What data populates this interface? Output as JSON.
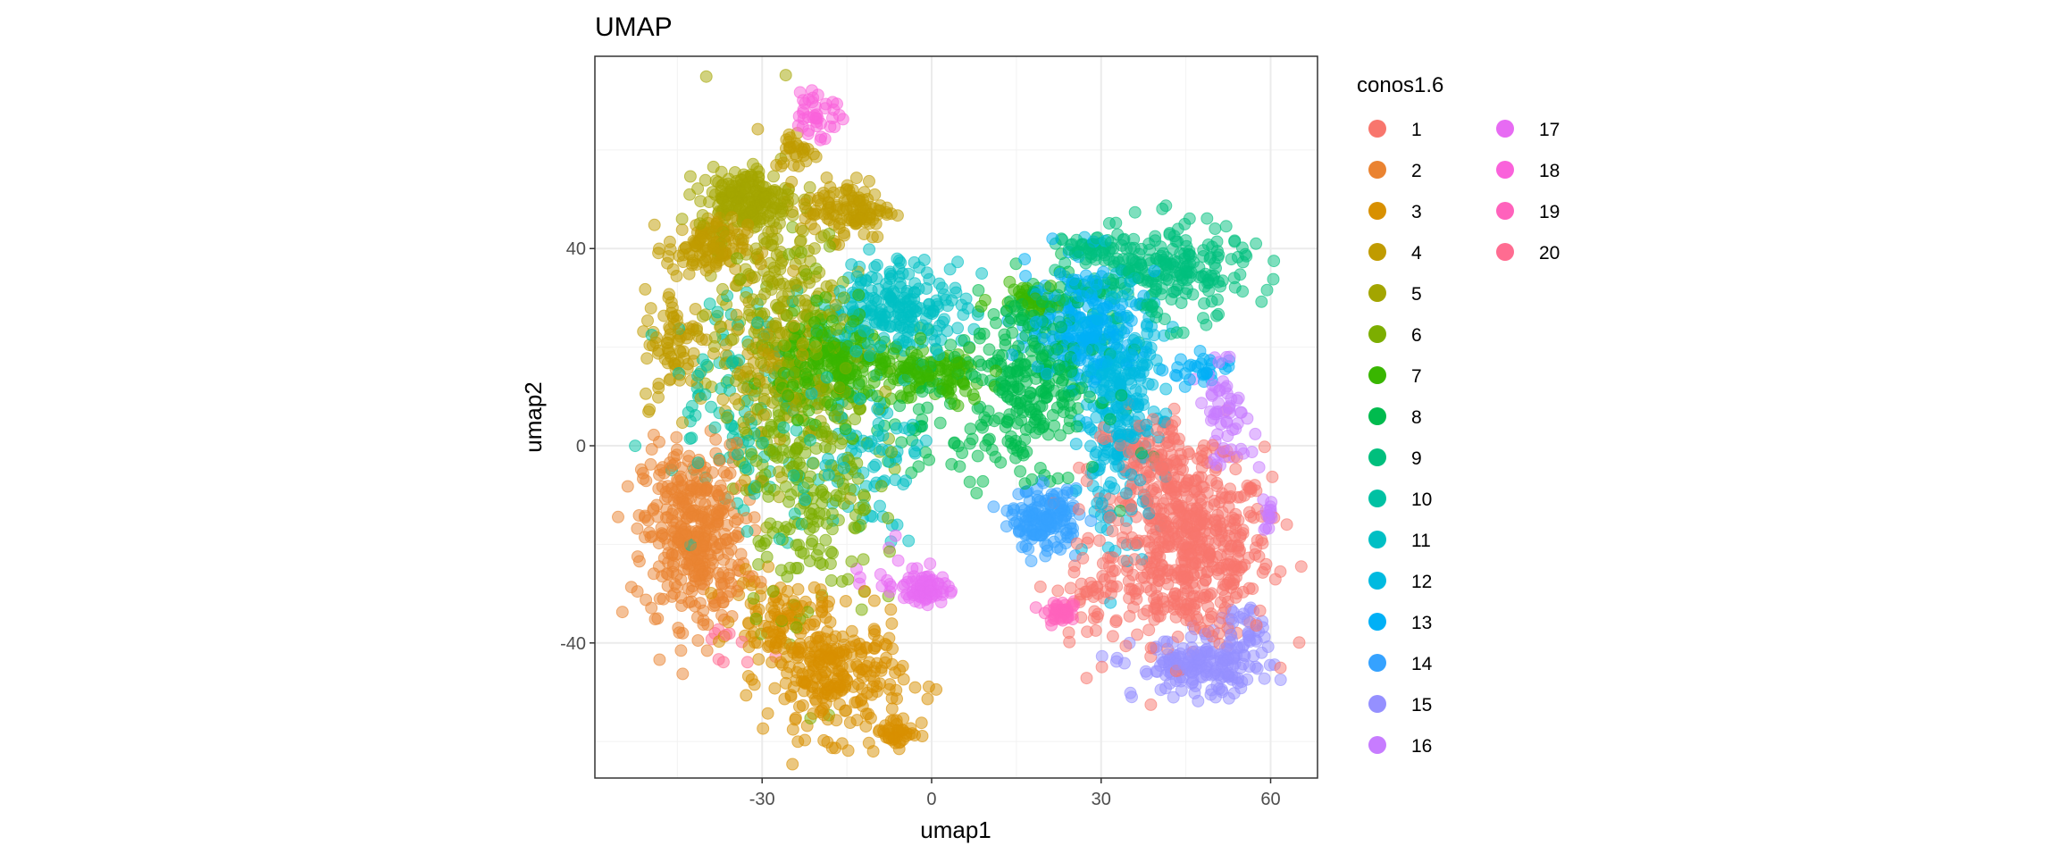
{
  "chart_data": {
    "type": "scatter",
    "title": "UMAP",
    "xlabel": "umap1",
    "ylabel": "umap2",
    "xlim": [
      -59.6,
      68.3
    ],
    "ylim": [
      -67.4,
      79
    ],
    "x_ticks": [
      -30,
      0,
      30,
      60
    ],
    "y_ticks": [
      -40,
      0,
      40
    ],
    "x_tick_labels": [
      "-30",
      "0",
      "30",
      "60"
    ],
    "y_tick_labels": [
      "-40",
      "0",
      "40"
    ],
    "grid": true,
    "legend": {
      "title": "conos1.6",
      "placement": "right",
      "entries": [
        "1",
        "2",
        "3",
        "4",
        "5",
        "6",
        "7",
        "8",
        "9",
        "10",
        "11",
        "12",
        "13",
        "14",
        "15",
        "16",
        "17",
        "18",
        "19",
        "20"
      ],
      "colors": [
        "#F8766D",
        "#EA8331",
        "#D89000",
        "#C09B00",
        "#A3A500",
        "#7CAE00",
        "#39B600",
        "#00BB4E",
        "#00BF7D",
        "#00C1A3",
        "#00BFC4",
        "#00BAE0",
        "#00B0F6",
        "#35A2FF",
        "#9590FF",
        "#C77CFF",
        "#E76BF3",
        "#FA62DB",
        "#FF62BC",
        "#FF6C91"
      ]
    },
    "clusters": [
      {
        "name": "1",
        "blobs": [
          [
            46,
            -22,
            7,
            9,
            500
          ],
          [
            40,
            -5,
            6,
            6,
            150
          ],
          [
            28,
            -30,
            3,
            6,
            40
          ]
        ]
      },
      {
        "name": "2",
        "blobs": [
          [
            -42,
            -18,
            4.5,
            9,
            400
          ]
        ]
      },
      {
        "name": "3",
        "blobs": [
          [
            -17,
            -47,
            6,
            6,
            250
          ],
          [
            -27,
            -35,
            4,
            4,
            100
          ],
          [
            -6,
            -58,
            2,
            1.5,
            40
          ]
        ]
      },
      {
        "name": "4",
        "blobs": [
          [
            -40,
            40,
            3.5,
            3,
            120
          ],
          [
            -15,
            48,
            4,
            3,
            120
          ],
          [
            -45,
            20,
            3,
            6,
            80
          ],
          [
            -24,
            60,
            2,
            2,
            30
          ],
          [
            -30,
            20,
            5,
            10,
            60
          ]
        ]
      },
      {
        "name": "5",
        "blobs": [
          [
            -33,
            50,
            4,
            3,
            180
          ],
          [
            -28,
            25,
            6,
            14,
            250
          ]
        ]
      },
      {
        "name": "6",
        "blobs": [
          [
            -22,
            0,
            6,
            18,
            300
          ]
        ]
      },
      {
        "name": "7",
        "blobs": [
          [
            -17,
            17,
            5,
            5,
            220
          ],
          [
            0,
            14,
            5,
            3,
            120
          ],
          [
            17,
            30,
            3,
            1.5,
            40
          ]
        ]
      },
      {
        "name": "8",
        "blobs": [
          [
            18,
            14,
            6,
            9,
            280
          ],
          [
            5,
            5,
            8,
            8,
            60
          ]
        ]
      },
      {
        "name": "9",
        "blobs": [
          [
            40,
            35,
            8,
            5,
            250
          ],
          [
            28,
            40,
            2,
            1,
            30
          ]
        ]
      },
      {
        "name": "10",
        "blobs": [
          [
            -32,
            8,
            8,
            12,
            120
          ]
        ]
      },
      {
        "name": "11",
        "blobs": [
          [
            -6,
            28,
            6,
            5,
            220
          ],
          [
            -12,
            -2,
            5,
            8,
            80
          ]
        ]
      },
      {
        "name": "12",
        "blobs": [
          [
            33,
            8,
            4,
            12,
            300
          ]
        ]
      },
      {
        "name": "13",
        "blobs": [
          [
            27,
            25,
            5,
            6,
            200
          ],
          [
            48,
            15,
            3,
            2,
            30
          ]
        ]
      },
      {
        "name": "14",
        "blobs": [
          [
            20,
            -15,
            3,
            3,
            150
          ]
        ]
      },
      {
        "name": "15",
        "blobs": [
          [
            48,
            -45,
            6,
            3,
            180
          ],
          [
            55,
            -38,
            2,
            3,
            30
          ]
        ]
      },
      {
        "name": "16",
        "blobs": [
          [
            52,
            6,
            2.5,
            5,
            60
          ],
          [
            60,
            -14,
            1,
            2,
            15
          ]
        ]
      },
      {
        "name": "17",
        "blobs": [
          [
            -1,
            -29,
            2,
            1.5,
            70
          ],
          [
            -8,
            -26,
            4,
            3,
            15
          ]
        ]
      },
      {
        "name": "18",
        "blobs": [
          [
            -20,
            68,
            2,
            3,
            40
          ]
        ]
      },
      {
        "name": "19",
        "blobs": [
          [
            23,
            -34,
            1.5,
            1,
            40
          ]
        ]
      },
      {
        "name": "20",
        "blobs": [
          [
            -35,
            -42,
            3,
            3,
            10
          ]
        ]
      }
    ]
  }
}
